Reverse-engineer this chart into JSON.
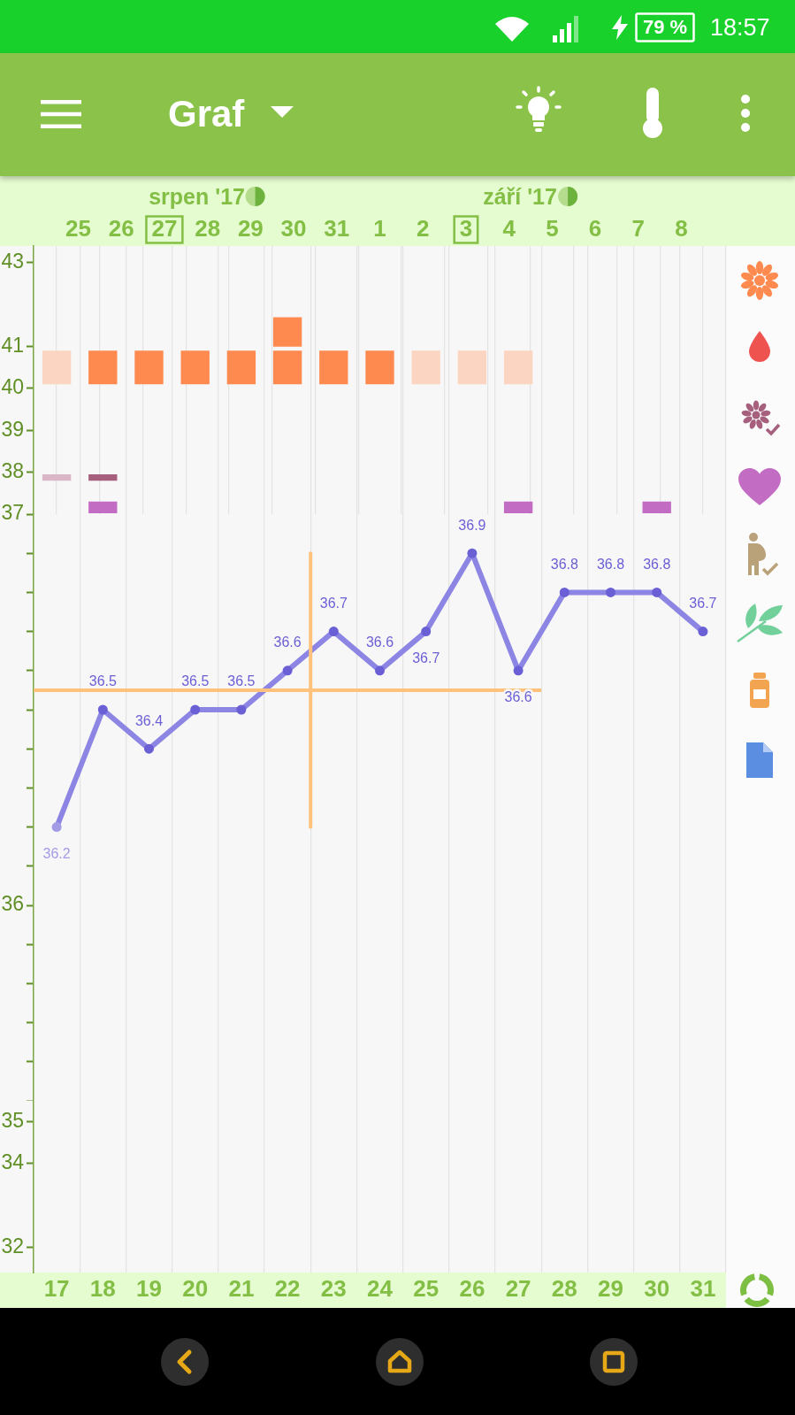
{
  "chart_data": [
    {
      "type": "bar",
      "title": "Graf",
      "annotations": [
        "79 %",
        "18:57",
        "srpen '17",
        "září '17"
      ],
      "xlim": [
        16.5,
        31.5
      ],
      "xticks": [
        17,
        18,
        19,
        20,
        21,
        22,
        23,
        24,
        25,
        26,
        27,
        28,
        29,
        30,
        31
      ],
      "x2lim": [
        "2017-08-25",
        "2017-09-09"
      ],
      "x2ticks": [
        {
          "value": "2017-08-25T12:00",
          "label": "25"
        },
        {
          "value": "2017-08-26T12:00",
          "label": "26"
        },
        {
          "value": "2017-08-27T12:00",
          "label": "27"
        },
        {
          "value": "2017-08-28T12:00",
          "label": "28"
        },
        {
          "value": "2017-08-29T12:00",
          "label": "29"
        },
        {
          "value": "2017-08-30T12:00",
          "label": "30"
        },
        {
          "value": "2017-08-31T12:00",
          "label": "31"
        },
        {
          "value": "2017-09-01T12:00",
          "label": "1"
        },
        {
          "value": "2017-09-02T12:00",
          "label": "2"
        },
        {
          "value": "2017-09-03T12:00",
          "label": "3"
        },
        {
          "value": "2017-09-04T12:00",
          "label": "4"
        },
        {
          "value": "2017-09-05T12:00",
          "label": "5"
        },
        {
          "value": "2017-09-06T12:00",
          "label": "6"
        },
        {
          "value": "2017-09-07T12:00",
          "label": "7"
        },
        {
          "value": "2017-09-08T12:00",
          "label": "8"
        }
      ],
      "ylim": [
        37,
        43.4
      ],
      "yticks": [
        38,
        39,
        40,
        41,
        43
      ],
      "grid": "x",
      "tick_labels": "y",
      "series": [
        {
          "type": "bar",
          "x": [
            17,
            18,
            19,
            20,
            21,
            22,
            23,
            24,
            25,
            26,
            27
          ],
          "base": [
            40.1,
            40.1,
            40.1,
            40.1,
            40.1,
            40.1,
            40.1,
            40.1,
            40.1,
            40.1,
            40.1
          ],
          "values": [
            0.8,
            0.8,
            0.8,
            0.8,
            0.8,
            0.8,
            0.8,
            0.8,
            0.8,
            0.8,
            0.8
          ],
          "colors": [
            "#fbd5c1",
            "#ff8a4f",
            "#ff8a4f",
            "#ff8a4f",
            "#ff8a4f",
            "#ff8a4f",
            "#ff8a4f",
            "#ff8a4f",
            "#fbd5c1",
            "#fbd5c1",
            "#fbd5c1"
          ]
        },
        {
          "type": "bar",
          "x": [
            22
          ],
          "base": [
            41
          ],
          "values": [
            0.7
          ],
          "color": "#ff8a4f"
        },
        {
          "type": "bar",
          "x": [
            17,
            18
          ],
          "base": [
            37.8,
            37.8
          ],
          "values": [
            0.15,
            0.15
          ],
          "colors": [
            "#dab6c6",
            "#a6607e"
          ]
        },
        {
          "type": "bar",
          "x": [
            18,
            27,
            30
          ],
          "base": [
            37.02,
            37.02,
            37.02
          ],
          "values": [
            0.28,
            0.28,
            0.28
          ],
          "color": "#c36cc3"
        }
      ]
    },
    {
      "type": "line",
      "xlim": [
        16.5,
        31.5
      ],
      "xticks": [
        17,
        18,
        19,
        20,
        21,
        22,
        23,
        24,
        25,
        26,
        27,
        28,
        29,
        30,
        31
      ],
      "ylim": [
        35.5,
        37
      ],
      "yticks": [
        {
          "value": 35.5,
          "label": null
        },
        {
          "value": 35.6,
          "label": null
        },
        {
          "value": 35.7,
          "label": null
        },
        {
          "value": 35.8,
          "label": null
        },
        {
          "value": 35.9,
          "label": null
        },
        36,
        {
          "value": 36.1,
          "label": null
        },
        {
          "value": 36.2,
          "label": null
        },
        {
          "value": 36.3,
          "label": null
        },
        {
          "value": 36.4,
          "label": null
        },
        {
          "value": 36.5,
          "label": null
        },
        {
          "value": 36.6,
          "label": null
        },
        {
          "value": 36.7,
          "label": null
        },
        {
          "value": 36.8,
          "label": null
        },
        {
          "value": 36.9,
          "label": null
        },
        37
      ],
      "grid": "x",
      "tick_labels": "y",
      "series": [
        {
          "type": "line",
          "x": [
            17,
            18,
            19,
            20,
            21,
            22,
            23,
            24,
            25,
            26,
            27,
            28,
            29,
            30,
            31
          ],
          "values": [
            36.2,
            36.5,
            36.4,
            36.5,
            36.5,
            36.6,
            36.7,
            36.6,
            36.7,
            36.9,
            36.6,
            36.8,
            36.8,
            36.8,
            36.7
          ],
          "value_labels": [
            "36.2",
            "36.5",
            "36.4",
            "36.5",
            "36.5",
            "36.6",
            "36.7",
            "36.6",
            "36.7",
            "36.9",
            "36.6",
            "36.8",
            "36.8",
            "36.8",
            "36.7"
          ],
          "color": "#8c85e3",
          "colors": [
            "#a39be6",
            "#6b5fd6",
            "#6b5fd6",
            "#6b5fd6",
            "#6b5fd6",
            "#6b5fd6",
            "#6b5fd6",
            "#6b5fd6",
            "#6b5fd6",
            "#6b5fd6",
            "#6b5fd6",
            "#6b5fd6",
            "#6b5fd6",
            "#6b5fd6",
            "#6b5fd6"
          ],
          "marker": "circle"
        },
        {
          "type": "line",
          "x": [
            16.5,
            27.5
          ],
          "values": [
            36.55,
            36.55
          ],
          "color": "#ffc27c"
        },
        {
          "type": "line",
          "x": [
            22.5,
            22.5
          ],
          "values": [
            36.9,
            36.2
          ],
          "color": "#ffc27c"
        }
      ]
    },
    {
      "type": "line",
      "xlim": [
        16.5,
        31.5
      ],
      "xticks": [
        17,
        18,
        19,
        20,
        21,
        22,
        23,
        24,
        25,
        26,
        27,
        28,
        29,
        30,
        31
      ],
      "ylim": [
        31.4,
        35.5
      ],
      "yticks": [
        32,
        34,
        35
      ],
      "grid": "x"
    }
  ]
}
